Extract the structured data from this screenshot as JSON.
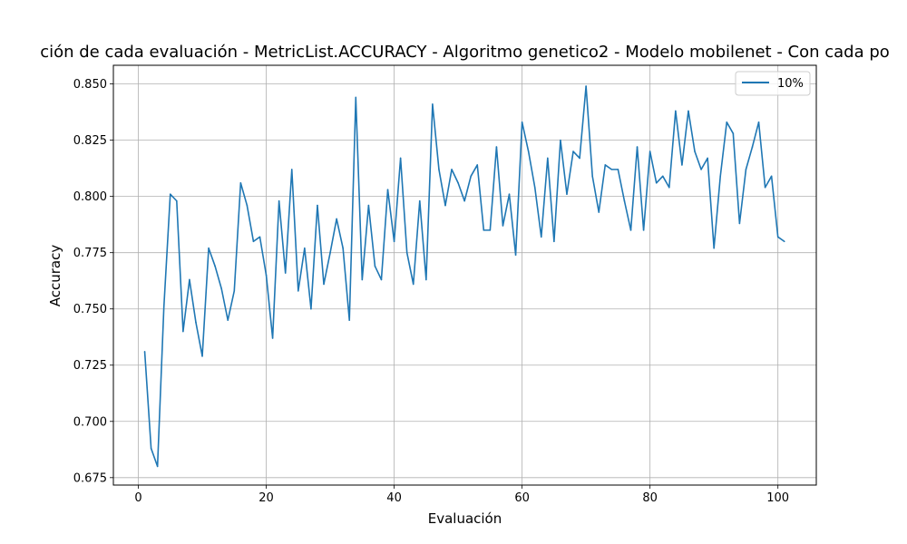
{
  "chart_data": {
    "type": "line",
    "title": "ción de cada evaluación - MetricList.ACCURACY - Algoritmo genetico2 - Modelo mobilenet - Con cada po",
    "xlabel": "Evaluación",
    "ylabel": "Accuracy",
    "xlim": [
      -3.9,
      106
    ],
    "ylim": [
      0.6717,
      0.8583
    ],
    "xticks": [
      0,
      20,
      40,
      60,
      80,
      100
    ],
    "xtick_labels": [
      "0",
      "20",
      "40",
      "60",
      "80",
      "100"
    ],
    "yticks": [
      0.675,
      0.7,
      0.725,
      0.75,
      0.775,
      0.8,
      0.825,
      0.85
    ],
    "ytick_labels": [
      "0.675",
      "0.700",
      "0.725",
      "0.750",
      "0.775",
      "0.800",
      "0.825",
      "0.850"
    ],
    "grid": true,
    "legend_position": "top-right",
    "series": [
      {
        "name": "10%",
        "color": "#1f77b4",
        "x": [
          1,
          2,
          3,
          4,
          5,
          6,
          7,
          8,
          9,
          10,
          11,
          12,
          13,
          14,
          15,
          16,
          17,
          18,
          19,
          20,
          21,
          22,
          23,
          24,
          25,
          26,
          27,
          28,
          29,
          30,
          31,
          32,
          33,
          34,
          35,
          36,
          37,
          38,
          39,
          40,
          41,
          42,
          43,
          44,
          45,
          46,
          47,
          48,
          49,
          50,
          51,
          52,
          53,
          54,
          55,
          56,
          57,
          58,
          59,
          60,
          61,
          62,
          63,
          64,
          65,
          66,
          67,
          68,
          69,
          70,
          71,
          72,
          73,
          74,
          75,
          76,
          77,
          78,
          79,
          80,
          81,
          82,
          83,
          84,
          85,
          86,
          87,
          88,
          89,
          90,
          91,
          92,
          93,
          94,
          95,
          96,
          97,
          98,
          99,
          100,
          101
        ],
        "values": [
          0.731,
          0.688,
          0.68,
          0.751,
          0.801,
          0.798,
          0.74,
          0.763,
          0.744,
          0.729,
          0.777,
          0.769,
          0.759,
          0.745,
          0.758,
          0.806,
          0.796,
          0.78,
          0.782,
          0.765,
          0.737,
          0.798,
          0.766,
          0.812,
          0.758,
          0.777,
          0.75,
          0.796,
          0.761,
          0.775,
          0.79,
          0.777,
          0.745,
          0.844,
          0.763,
          0.796,
          0.769,
          0.763,
          0.803,
          0.78,
          0.817,
          0.775,
          0.761,
          0.798,
          0.763,
          0.841,
          0.812,
          0.796,
          0.812,
          0.806,
          0.798,
          0.809,
          0.814,
          0.785,
          0.785,
          0.822,
          0.787,
          0.801,
          0.774,
          0.833,
          0.82,
          0.804,
          0.782,
          0.817,
          0.78,
          0.825,
          0.801,
          0.82,
          0.817,
          0.849,
          0.809,
          0.793,
          0.814,
          0.812,
          0.812,
          0.798,
          0.785,
          0.822,
          0.785,
          0.82,
          0.806,
          0.809,
          0.804,
          0.838,
          0.814,
          0.838,
          0.82,
          0.812,
          0.817,
          0.777,
          0.809,
          0.833,
          0.828,
          0.788,
          0.812,
          0.822,
          0.833,
          0.804,
          0.809,
          0.782,
          0.78
        ]
      }
    ]
  }
}
